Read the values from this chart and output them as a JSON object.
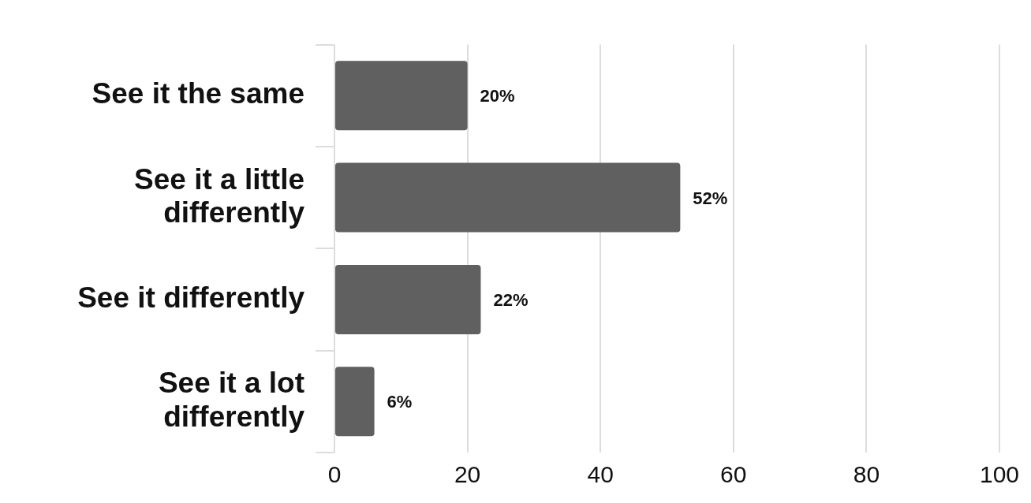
{
  "chart_data": {
    "type": "bar",
    "orientation": "horizontal",
    "categories": [
      "See it the same",
      "See it a little differently",
      "See it differently",
      "See it a lot differently"
    ],
    "values": [
      20,
      52,
      22,
      6
    ],
    "value_labels": [
      "20%",
      "52%",
      "22%",
      "6%"
    ],
    "color": "#606060",
    "xlim": [
      0,
      100
    ],
    "xticks": [
      0,
      20,
      40,
      60,
      80,
      100
    ],
    "grid": "x",
    "legend": false
  }
}
